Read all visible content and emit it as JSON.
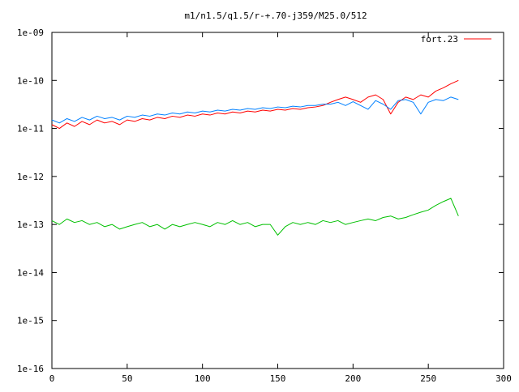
{
  "chart_data": {
    "type": "line",
    "title": "m1/n1.5/q1.5/r-+.70-j359/M25.0/512",
    "xlabel": "",
    "ylabel": "",
    "xlim": [
      0,
      300
    ],
    "ylim": [
      1e-16,
      1e-09
    ],
    "yscale": "log",
    "grid": false,
    "legend_position": "top-right",
    "x_ticks": [
      0,
      50,
      100,
      150,
      200,
      250,
      300
    ],
    "x_tick_labels": [
      "0",
      "50",
      "100",
      "150",
      "200",
      "250",
      "300"
    ],
    "y_ticks": [
      1e-16,
      1e-15,
      1e-14,
      1e-13,
      1e-12,
      1e-11,
      1e-10,
      1e-09
    ],
    "y_tick_labels": [
      "1e-16",
      "1e-15",
      "1e-14",
      "1e-13",
      "1e-12",
      "1e-11",
      "1e-10",
      "1e-09"
    ],
    "series": [
      {
        "name": "fort.23",
        "color": "#ff0000",
        "x": [
          0,
          5,
          10,
          15,
          20,
          25,
          30,
          35,
          40,
          45,
          50,
          55,
          60,
          65,
          70,
          75,
          80,
          85,
          90,
          95,
          100,
          105,
          110,
          115,
          120,
          125,
          130,
          135,
          140,
          145,
          150,
          155,
          160,
          165,
          170,
          175,
          180,
          185,
          190,
          195,
          200,
          205,
          210,
          215,
          220,
          225,
          230,
          235,
          240,
          245,
          250,
          255,
          260,
          265,
          270
        ],
        "y": [
          1.2e-11,
          1e-11,
          1.3e-11,
          1.1e-11,
          1.4e-11,
          1.2e-11,
          1.5e-11,
          1.3e-11,
          1.4e-11,
          1.2e-11,
          1.5e-11,
          1.4e-11,
          1.6e-11,
          1.5e-11,
          1.7e-11,
          1.6e-11,
          1.8e-11,
          1.7e-11,
          1.9e-11,
          1.8e-11,
          2e-11,
          1.9e-11,
          2.1e-11,
          2e-11,
          2.2e-11,
          2.1e-11,
          2.3e-11,
          2.2e-11,
          2.4e-11,
          2.3e-11,
          2.5e-11,
          2.4e-11,
          2.6e-11,
          2.5e-11,
          2.7e-11,
          2.8e-11,
          3e-11,
          3.5e-11,
          4e-11,
          4.5e-11,
          4e-11,
          3.5e-11,
          4.5e-11,
          5e-11,
          4e-11,
          2e-11,
          3.5e-11,
          4.5e-11,
          4e-11,
          5e-11,
          4.5e-11,
          6e-11,
          7e-11,
          8.5e-11,
          1e-10
        ]
      },
      {
        "color": "#0080ff",
        "x": [
          0,
          5,
          10,
          15,
          20,
          25,
          30,
          35,
          40,
          45,
          50,
          55,
          60,
          65,
          70,
          75,
          80,
          85,
          90,
          95,
          100,
          105,
          110,
          115,
          120,
          125,
          130,
          135,
          140,
          145,
          150,
          155,
          160,
          165,
          170,
          175,
          180,
          185,
          190,
          195,
          200,
          205,
          210,
          215,
          220,
          225,
          230,
          235,
          240,
          245,
          250,
          255,
          260,
          265,
          270
        ],
        "y": [
          1.5e-11,
          1.3e-11,
          1.6e-11,
          1.4e-11,
          1.7e-11,
          1.5e-11,
          1.8e-11,
          1.6e-11,
          1.7e-11,
          1.5e-11,
          1.8e-11,
          1.7e-11,
          1.9e-11,
          1.8e-11,
          2e-11,
          1.9e-11,
          2.1e-11,
          2e-11,
          2.2e-11,
          2.1e-11,
          2.3e-11,
          2.2e-11,
          2.4e-11,
          2.3e-11,
          2.5e-11,
          2.4e-11,
          2.6e-11,
          2.5e-11,
          2.7e-11,
          2.6e-11,
          2.8e-11,
          2.7e-11,
          2.9e-11,
          2.8e-11,
          3e-11,
          3e-11,
          3.2e-11,
          3.2e-11,
          3.5e-11,
          3e-11,
          3.6e-11,
          3e-11,
          2.5e-11,
          3.8e-11,
          3.2e-11,
          2.5e-11,
          3.8e-11,
          4e-11,
          3.5e-11,
          2e-11,
          3.5e-11,
          4e-11,
          3.8e-11,
          4.5e-11,
          4e-11
        ]
      },
      {
        "color": "#00c000",
        "x": [
          0,
          5,
          10,
          15,
          20,
          25,
          30,
          35,
          40,
          45,
          50,
          55,
          60,
          65,
          70,
          75,
          80,
          85,
          90,
          95,
          100,
          105,
          110,
          115,
          120,
          125,
          130,
          135,
          140,
          145,
          150,
          155,
          160,
          165,
          170,
          175,
          180,
          185,
          190,
          195,
          200,
          205,
          210,
          215,
          220,
          225,
          230,
          235,
          240,
          245,
          250,
          255,
          260,
          265,
          270
        ],
        "y": [
          1.2e-13,
          1e-13,
          1.3e-13,
          1.1e-13,
          1.2e-13,
          1e-13,
          1.1e-13,
          9e-14,
          1e-13,
          8e-14,
          9e-14,
          1e-13,
          1.1e-13,
          9e-14,
          1e-13,
          8e-14,
          1e-13,
          9e-14,
          1e-13,
          1.1e-13,
          1e-13,
          9e-14,
          1.1e-13,
          1e-13,
          1.2e-13,
          1e-13,
          1.1e-13,
          9e-14,
          1e-13,
          1e-13,
          6e-14,
          9e-14,
          1.1e-13,
          1e-13,
          1.1e-13,
          1e-13,
          1.2e-13,
          1.1e-13,
          1.2e-13,
          1e-13,
          1.1e-13,
          1.2e-13,
          1.3e-13,
          1.2e-13,
          1.4e-13,
          1.5e-13,
          1.3e-13,
          1.4e-13,
          1.6e-13,
          1.8e-13,
          2e-13,
          2.5e-13,
          3e-13,
          3.5e-13,
          1.5e-13
        ]
      }
    ]
  },
  "page": {
    "background": "#ffffff",
    "axis_color": "#000000"
  }
}
